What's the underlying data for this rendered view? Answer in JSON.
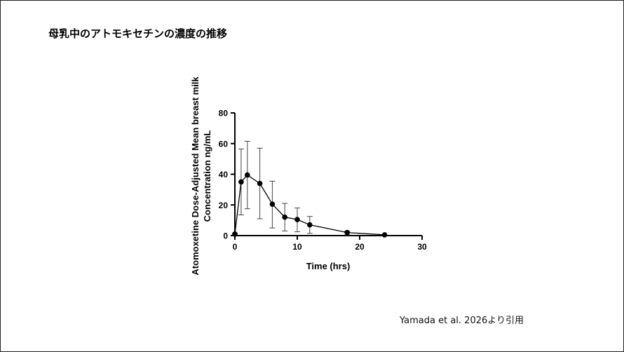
{
  "slide": {
    "title": "母乳中のアトモキセチンの濃度の推移",
    "citation": "Yamada et al. 2026より引用"
  },
  "chart_data": {
    "type": "line",
    "title": "",
    "xlabel": "Time (hrs)",
    "ylabel_line1": "Atomoxetine Dose-Adjusted Mean breast milk",
    "ylabel_line2": "Concentration ng/mL",
    "xlim": [
      0,
      30
    ],
    "ylim": [
      0,
      80
    ],
    "x_ticks": [
      0,
      10,
      20,
      30
    ],
    "y_ticks": [
      0,
      20,
      40,
      60,
      80
    ],
    "grid": false,
    "series": [
      {
        "x": [
          0,
          1,
          2,
          4,
          6,
          8,
          10,
          12,
          18,
          24
        ],
        "y": [
          1,
          35,
          39.5,
          34,
          20.5,
          12,
          10.5,
          7,
          2,
          0.5
        ],
        "error_low": [
          0.5,
          13.5,
          17.5,
          11,
          5,
          3,
          2.5,
          1.5,
          0.5,
          0
        ],
        "error_high": [
          1.5,
          56.5,
          61.5,
          57,
          35.5,
          21,
          18,
          12.5,
          3,
          0.5
        ]
      }
    ]
  }
}
